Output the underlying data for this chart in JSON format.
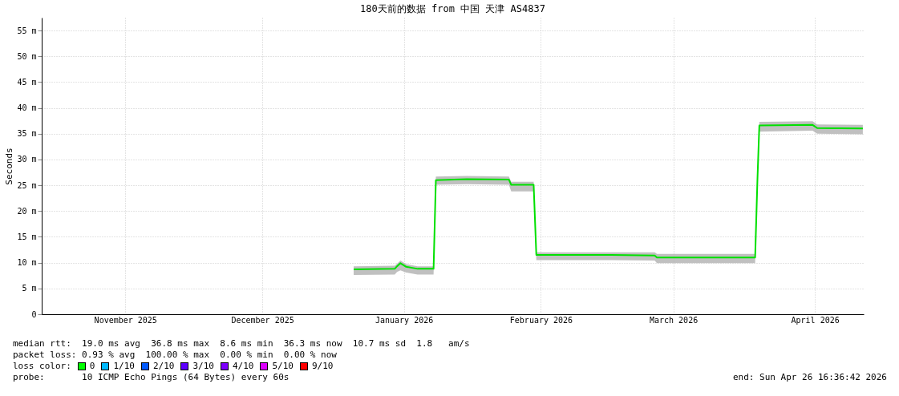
{
  "chart_data": {
    "type": "line",
    "title": "180天前的数据 from 中国 天津 AS4837",
    "ylabel": "Seconds",
    "xlim": [
      "2025-10-28T16:36",
      "2026-04-26T16:36"
    ],
    "xticks": [
      {
        "value": "2025-11-16",
        "label": "November 2025"
      },
      {
        "value": "2025-12-16",
        "label": "December 2025"
      },
      {
        "value": "2026-01-16",
        "label": "January 2026"
      },
      {
        "value": "2026-02-15",
        "label": "February 2026"
      },
      {
        "value": "2026-03-16",
        "label": "March 2026"
      },
      {
        "value": "2026-04-16",
        "label": "April 2026"
      }
    ],
    "ylim": [
      0,
      57.5
    ],
    "yticks": [
      0,
      {
        "value": 5,
        "label": "5 m"
      },
      {
        "value": 10,
        "label": "10 m"
      },
      {
        "value": 15,
        "label": "15 m"
      },
      {
        "value": 20,
        "label": "20 m"
      },
      {
        "value": 25,
        "label": "25 m"
      },
      {
        "value": 30,
        "label": "30 m"
      },
      {
        "value": 35,
        "label": "35 m"
      },
      {
        "value": 40,
        "label": "40 m"
      },
      {
        "value": 45,
        "label": "45 m"
      },
      {
        "value": 50,
        "label": "50 m"
      },
      {
        "value": 55,
        "label": "55 m"
      }
    ],
    "grid": true,
    "x": [
      "2026-01-05T00:00",
      "2026-01-14T00:00",
      "2026-01-14T12:00",
      "2026-01-15T06:00",
      "2026-01-16T12:00",
      "2026-01-19T00:00",
      "2026-01-22T12:00",
      "2026-01-23T00:00",
      "2026-01-29T18:00",
      "2026-02-08T00:00",
      "2026-02-08T12:00",
      "2026-02-13T10:00",
      "2026-02-14T00:00",
      "2026-02-28T18:00",
      "2026-03-11T22:00",
      "2026-03-12T10:00",
      "2026-04-02T22:00",
      "2026-04-03T10:00",
      "2026-04-03T20:00",
      "2026-04-15T12:00",
      "2026-04-16T12:00",
      "2026-04-26T12:00"
    ],
    "series": [
      {
        "color": "#00e000",
        "values": [
          8.7,
          8.8,
          9.3,
          9.9,
          9.2,
          8.8,
          8.8,
          26.0,
          26.2,
          26.1,
          25.1,
          25.1,
          11.5,
          11.5,
          11.4,
          11.0,
          11.0,
          26.0,
          36.6,
          36.7,
          36.1,
          36.0
        ],
        "lower": [
          7.6,
          7.7,
          8.2,
          8.5,
          8.1,
          7.7,
          7.7,
          25.1,
          25.2,
          25.1,
          23.8,
          23.8,
          10.5,
          10.5,
          10.4,
          9.9,
          9.9,
          25.0,
          35.4,
          35.6,
          35.0,
          34.9
        ],
        "upper": [
          9.3,
          9.4,
          9.8,
          10.4,
          9.7,
          9.3,
          9.3,
          26.7,
          26.8,
          26.7,
          25.7,
          25.7,
          12.0,
          12.0,
          12.0,
          11.7,
          11.7,
          26.6,
          37.3,
          37.4,
          36.8,
          36.7
        ]
      }
    ],
    "annotations": [
      "median rtt:  19.0 ms avg  36.8 ms max  8.6 ms min  36.3 ms now  10.7 ms sd  1.8   am/s",
      "packet loss: 0.93 % avg  100.00 % max  0.00 % min  0.00 % now",
      "loss color:",
      "0",
      "1/10",
      "2/10",
      "3/10",
      "4/10",
      "5/10",
      "9/10",
      "probe:       10 ICMP Echo Pings (64 Bytes) every 60s",
      "end: Sun Apr 26 16:36:42 2026"
    ]
  }
}
